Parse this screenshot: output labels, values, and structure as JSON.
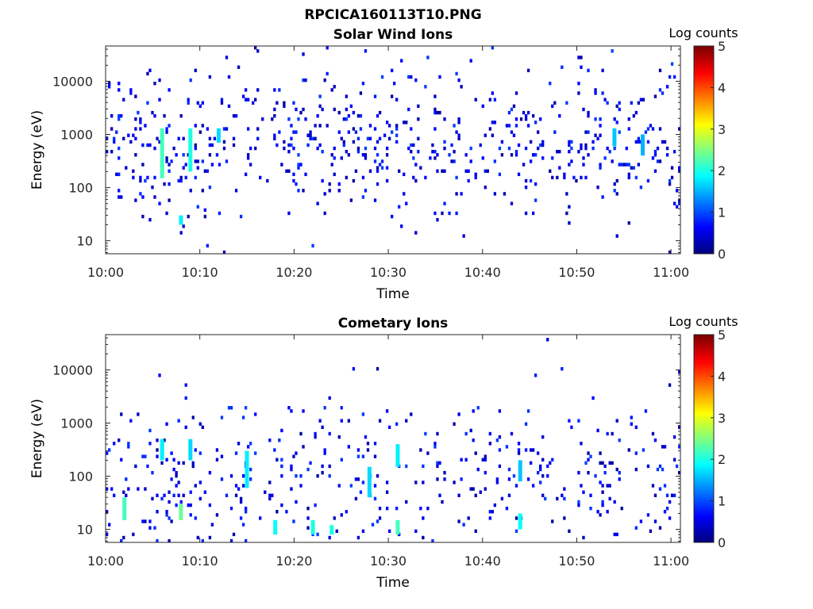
{
  "figure_title": "RPCICA160113T10.PNG",
  "chart_data": [
    {
      "type": "heatmap",
      "title": "Solar Wind Ions",
      "xlabel": "Time",
      "ylabel": "Energy (eV)",
      "y_scale": "log",
      "ylim": [
        5.7,
        46000
      ],
      "xlim": [
        "10:00",
        "11:01"
      ],
      "x_ticks": [
        "10:00",
        "10:10",
        "10:20",
        "10:30",
        "10:40",
        "10:50",
        "11:00"
      ],
      "y_ticks": [
        "10",
        "100",
        "1000",
        "10000"
      ],
      "colorbar": {
        "label": "Log counts",
        "min": 0,
        "max": 5,
        "ticks": [
          "0",
          "1",
          "2",
          "3",
          "4",
          "5"
        ],
        "colormap": "jet"
      },
      "dominant_energy_band_eV": [
        150,
        3000
      ],
      "bright_features": [
        {
          "time": "10:06",
          "energy_low_eV": 150,
          "energy_high_eV": 1300,
          "log_counts": 2.2
        },
        {
          "time": "10:09",
          "energy_low_eV": 200,
          "energy_high_eV": 1300,
          "log_counts": 2.0
        },
        {
          "time": "10:12",
          "energy_low_eV": 700,
          "energy_high_eV": 1300,
          "log_counts": 1.7
        },
        {
          "time": "10:54",
          "energy_low_eV": 600,
          "energy_high_eV": 1300,
          "log_counts": 1.6
        },
        {
          "time": "10:57",
          "energy_low_eV": 400,
          "energy_high_eV": 1000,
          "log_counts": 1.5
        },
        {
          "time": "10:08",
          "energy_low_eV": 20,
          "energy_high_eV": 30,
          "log_counts": 1.8
        }
      ]
    },
    {
      "type": "heatmap",
      "title": "Cometary Ions",
      "xlabel": "Time",
      "ylabel": "Energy (eV)",
      "y_scale": "log",
      "ylim": [
        5.7,
        46000
      ],
      "xlim": [
        "10:00",
        "11:01"
      ],
      "x_ticks": [
        "10:00",
        "10:10",
        "10:20",
        "10:30",
        "10:40",
        "10:50",
        "11:00"
      ],
      "y_ticks": [
        "10",
        "100",
        "1000",
        "10000"
      ],
      "colorbar": {
        "label": "Log counts",
        "min": 0,
        "max": 5,
        "ticks": [
          "0",
          "1",
          "2",
          "3",
          "4",
          "5"
        ],
        "colormap": "jet"
      },
      "dominant_energy_band_eV": [
        10,
        600
      ],
      "bright_features": [
        {
          "time": "10:02",
          "energy_low_eV": 15,
          "energy_high_eV": 40,
          "log_counts": 2.2
        },
        {
          "time": "10:06",
          "energy_low_eV": 200,
          "energy_high_eV": 500,
          "log_counts": 1.8
        },
        {
          "time": "10:08",
          "energy_low_eV": 15,
          "energy_high_eV": 30,
          "log_counts": 2.4
        },
        {
          "time": "10:09",
          "energy_low_eV": 200,
          "energy_high_eV": 500,
          "log_counts": 1.7
        },
        {
          "time": "10:15",
          "energy_low_eV": 60,
          "energy_high_eV": 300,
          "log_counts": 1.8
        },
        {
          "time": "10:18",
          "energy_low_eV": 8,
          "energy_high_eV": 15,
          "log_counts": 1.9
        },
        {
          "time": "10:22",
          "energy_low_eV": 8,
          "energy_high_eV": 15,
          "log_counts": 2.0
        },
        {
          "time": "10:24",
          "energy_low_eV": 8,
          "energy_high_eV": 12,
          "log_counts": 2.0
        },
        {
          "time": "10:28",
          "energy_low_eV": 40,
          "energy_high_eV": 150,
          "log_counts": 1.7
        },
        {
          "time": "10:31",
          "energy_low_eV": 150,
          "energy_high_eV": 400,
          "log_counts": 1.8
        },
        {
          "time": "10:31",
          "energy_low_eV": 8,
          "energy_high_eV": 15,
          "log_counts": 2.2
        },
        {
          "time": "10:44",
          "energy_low_eV": 10,
          "energy_high_eV": 20,
          "log_counts": 1.9
        },
        {
          "time": "10:44",
          "energy_low_eV": 80,
          "energy_high_eV": 200,
          "log_counts": 1.6
        }
      ]
    }
  ]
}
